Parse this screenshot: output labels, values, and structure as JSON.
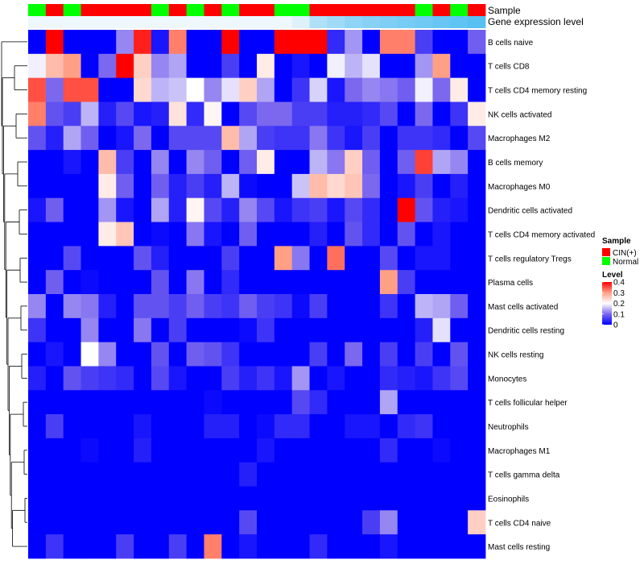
{
  "chart_data": {
    "type": "heatmap",
    "title": "",
    "annotation_tracks": [
      "Sample",
      "Gene expression level"
    ],
    "sample_groups": [
      "N",
      "C",
      "N",
      "C",
      "C",
      "C",
      "C",
      "N",
      "C",
      "N",
      "C",
      "N",
      "C",
      "C",
      "N",
      "N",
      "C",
      "C",
      "C",
      "C",
      "C",
      "C",
      "N",
      "C",
      "N",
      "C"
    ],
    "gene_expression_level": [
      0.0,
      0.0,
      0.0,
      0.0,
      0.0,
      0.0,
      0.0,
      0.0,
      0.0,
      0.0,
      0.0,
      0.0,
      0.0,
      0.0,
      0.0,
      0.1,
      0.4,
      0.5,
      0.6,
      0.65,
      0.7,
      0.75,
      0.8,
      0.85,
      0.9,
      0.95
    ],
    "rows": [
      "B cells naive",
      "T cells CD8",
      "T cells CD4 memory resting",
      "NK cells activated",
      "Macrophages M2",
      "B cells memory",
      "Macrophages M0",
      "Dendritic cells activated",
      "T cells CD4 memory activated",
      "T cells regulatory  Tregs",
      "Plasma cells",
      "Mast cells activated",
      "Dendritic cells resting",
      "NK cells resting",
      "Monocytes",
      "T cells follicular helper",
      "Neutrophils",
      "Macrophages M1",
      "T cells gamma delta",
      "Eosinophils",
      "T cells CD4 naive",
      "Mast cells resting"
    ],
    "values": [
      [
        0.0,
        0.4,
        0.0,
        0.0,
        0.0,
        0.12,
        0.38,
        0.02,
        0.32,
        0.0,
        0.0,
        0.4,
        0.0,
        0.0,
        0.4,
        0.4,
        0.4,
        0.04,
        0.13,
        0.0,
        0.32,
        0.32,
        0.06,
        0.0,
        0.0,
        0.09
      ],
      [
        0.19,
        0.27,
        0.3,
        0.0,
        0.1,
        0.4,
        0.25,
        0.12,
        0.14,
        0.0,
        0.0,
        0.06,
        0.0,
        0.22,
        0.0,
        0.02,
        0.0,
        0.19,
        0.15,
        0.18,
        0.0,
        0.0,
        0.13,
        0.3,
        0.0,
        0.0
      ],
      [
        0.35,
        0.1,
        0.35,
        0.35,
        0.0,
        0.0,
        0.24,
        0.15,
        0.16,
        0.2,
        0.12,
        0.18,
        0.25,
        0.14,
        0.0,
        0.05,
        0.17,
        0.02,
        0.1,
        0.12,
        0.11,
        0.09,
        0.19,
        0.1,
        0.22,
        0.0
      ],
      [
        0.32,
        0.08,
        0.06,
        0.15,
        0.03,
        0.07,
        0.02,
        0.03,
        0.23,
        0.04,
        0.21,
        0.0,
        0.07,
        0.1,
        0.1,
        0.06,
        0.06,
        0.03,
        0.03,
        0.04,
        0.07,
        0.0,
        0.1,
        0.0,
        0.05,
        0.22
      ],
      [
        0.08,
        0.03,
        0.14,
        0.09,
        0.0,
        0.02,
        0.1,
        0.0,
        0.07,
        0.07,
        0.07,
        0.27,
        0.14,
        0.06,
        0.05,
        0.05,
        0.11,
        0.05,
        0.02,
        0.06,
        0.0,
        0.05,
        0.05,
        0.04,
        0.0,
        0.07
      ],
      [
        0.0,
        0.0,
        0.02,
        0.0,
        0.27,
        0.06,
        0.0,
        0.12,
        0.0,
        0.12,
        0.09,
        0.0,
        0.09,
        0.22,
        0.0,
        0.0,
        0.15,
        0.11,
        0.25,
        0.09,
        0.0,
        0.09,
        0.36,
        0.14,
        0.12,
        0.0
      ],
      [
        0.0,
        0.0,
        0.0,
        0.0,
        0.22,
        0.09,
        0.0,
        0.09,
        0.03,
        0.06,
        0.03,
        0.15,
        0.01,
        0.0,
        0.0,
        0.16,
        0.27,
        0.24,
        0.26,
        0.1,
        0.0,
        0.02,
        0.06,
        0.0,
        0.03,
        0.0
      ],
      [
        0.02,
        0.09,
        0.0,
        0.0,
        0.13,
        0.02,
        0.0,
        0.14,
        0.03,
        0.21,
        0.07,
        0.03,
        0.12,
        0.07,
        0.02,
        0.05,
        0.06,
        0.02,
        0.07,
        0.04,
        0.0,
        0.4,
        0.08,
        0.03,
        0.02,
        0.0
      ],
      [
        0.0,
        0.0,
        0.0,
        0.0,
        0.22,
        0.26,
        0.0,
        0.01,
        0.0,
        0.11,
        0.02,
        0.0,
        0.09,
        0.0,
        0.0,
        0.0,
        0.03,
        0.0,
        0.08,
        0.04,
        0.0,
        0.08,
        0.0,
        0.02,
        0.0,
        0.0
      ],
      [
        0.0,
        0.0,
        0.07,
        0.0,
        0.0,
        0.0,
        0.08,
        0.03,
        0.0,
        0.0,
        0.0,
        0.06,
        0.0,
        0.0,
        0.3,
        0.11,
        0.0,
        0.33,
        0.0,
        0.0,
        0.07,
        0.0,
        0.02,
        0.02,
        0.0,
        0.0
      ],
      [
        0.0,
        0.09,
        0.0,
        0.01,
        0.0,
        0.0,
        0.0,
        0.08,
        0.0,
        0.11,
        0.0,
        0.04,
        0.0,
        0.0,
        0.0,
        0.0,
        0.0,
        0.0,
        0.0,
        0.0,
        0.3,
        0.06,
        0.0,
        0.0,
        0.0,
        0.0
      ],
      [
        0.12,
        0.0,
        0.12,
        0.11,
        0.03,
        0.0,
        0.08,
        0.08,
        0.06,
        0.09,
        0.06,
        0.05,
        0.09,
        0.06,
        0.05,
        0.01,
        0.06,
        0.0,
        0.0,
        0.0,
        0.05,
        0.0,
        0.15,
        0.14,
        0.09,
        0.0
      ],
      [
        0.05,
        0.0,
        0.0,
        0.12,
        0.0,
        0.0,
        0.11,
        0.0,
        0.06,
        0.0,
        0.0,
        0.0,
        0.01,
        0.05,
        0.0,
        0.0,
        0.0,
        0.0,
        0.0,
        0.0,
        0.0,
        0.0,
        0.03,
        0.18,
        0.0,
        0.0
      ],
      [
        0.0,
        0.02,
        0.0,
        0.2,
        0.12,
        0.0,
        0.0,
        0.08,
        0.0,
        0.09,
        0.08,
        0.05,
        0.0,
        0.0,
        0.0,
        0.0,
        0.06,
        0.0,
        0.1,
        0.0,
        0.06,
        0.0,
        0.06,
        0.0,
        0.08,
        0.0
      ],
      [
        0.03,
        0.0,
        0.08,
        0.06,
        0.05,
        0.04,
        0.0,
        0.07,
        0.02,
        0.0,
        0.0,
        0.06,
        0.03,
        0.05,
        0.02,
        0.13,
        0.0,
        0.02,
        0.0,
        0.0,
        0.04,
        0.03,
        0.02,
        0.05,
        0.07,
        0.0
      ],
      [
        0.0,
        0.0,
        0.0,
        0.0,
        0.0,
        0.0,
        0.0,
        0.0,
        0.0,
        0.0,
        0.01,
        0.0,
        0.0,
        0.0,
        0.0,
        0.07,
        0.04,
        0.0,
        0.0,
        0.0,
        0.14,
        0.0,
        0.0,
        0.0,
        0.0,
        0.0
      ],
      [
        0.0,
        0.06,
        0.0,
        0.0,
        0.0,
        0.0,
        0.02,
        0.0,
        0.0,
        0.0,
        0.03,
        0.03,
        0.0,
        0.01,
        0.04,
        0.04,
        0.0,
        0.0,
        0.02,
        0.02,
        0.0,
        0.04,
        0.05,
        0.0,
        0.0,
        0.0
      ],
      [
        0.0,
        0.0,
        0.0,
        0.01,
        0.0,
        0.0,
        0.03,
        0.0,
        0.0,
        0.0,
        0.0,
        0.0,
        0.0,
        0.02,
        0.0,
        0.0,
        0.0,
        0.0,
        0.0,
        0.0,
        0.04,
        0.0,
        0.0,
        0.01,
        0.0,
        0.0
      ],
      [
        0.0,
        0.0,
        0.0,
        0.0,
        0.0,
        0.0,
        0.0,
        0.0,
        0.0,
        0.0,
        0.0,
        0.0,
        0.03,
        0.0,
        0.0,
        0.0,
        0.0,
        0.0,
        0.0,
        0.0,
        0.0,
        0.0,
        0.0,
        0.0,
        0.0,
        0.0
      ],
      [
        0.0,
        0.0,
        0.0,
        0.0,
        0.0,
        0.0,
        0.0,
        0.0,
        0.0,
        0.0,
        0.0,
        0.0,
        0.0,
        0.0,
        0.0,
        0.0,
        0.0,
        0.0,
        0.0,
        0.0,
        0.0,
        0.0,
        0.0,
        0.0,
        0.0,
        0.0
      ],
      [
        0.0,
        0.0,
        0.0,
        0.0,
        0.0,
        0.0,
        0.0,
        0.0,
        0.0,
        0.0,
        0.0,
        0.0,
        0.07,
        0.0,
        0.0,
        0.0,
        0.0,
        0.0,
        0.0,
        0.06,
        0.12,
        0.0,
        0.0,
        0.0,
        0.0,
        0.25
      ],
      [
        0.0,
        0.05,
        0.0,
        0.0,
        0.0,
        0.06,
        0.0,
        0.0,
        0.06,
        0.0,
        0.32,
        0.0,
        0.02,
        0.0,
        0.0,
        0.0,
        0.04,
        0.0,
        0.0,
        0.0,
        0.02,
        0.0,
        0.0,
        0.0,
        0.0,
        0.0
      ]
    ],
    "color_scale": {
      "stops": [
        0,
        0.1,
        0.2,
        0.3,
        0.4
      ],
      "colors": [
        "#0000ff",
        "#7b68ee",
        "#ffffff",
        "#ff9f86",
        "#ff0000"
      ]
    },
    "legends": {
      "sample": {
        "title": "Sample",
        "items": [
          {
            "key": "C",
            "label": "CIN(+)",
            "color": "#ff0000"
          },
          {
            "key": "N",
            "label": "Normal",
            "color": "#00ff00"
          }
        ]
      },
      "level": {
        "title": "Level",
        "ticks": [
          "0.4",
          "0.3",
          "0.2",
          "0.1",
          "0"
        ],
        "tick_values": [
          0.4,
          0.3,
          0.2,
          0.1,
          0.0
        ]
      }
    },
    "expression_track_colors": [
      "#eef7fc",
      "#4fbdf2"
    ],
    "row_dendrogram": true
  }
}
